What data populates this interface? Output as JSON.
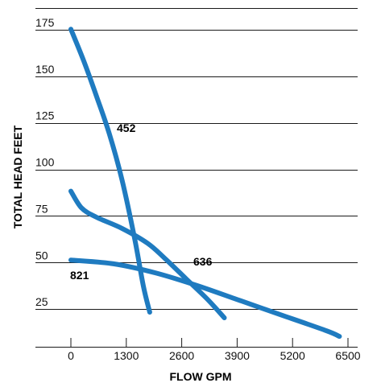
{
  "chart_data": {
    "type": "line",
    "title": "",
    "xlabel": "FLOW GPM",
    "ylabel": "TOTAL HEAD FEET",
    "xlim": [
      -800,
      6500
    ],
    "ylim": [
      0,
      180
    ],
    "x_ticks": [
      0,
      1300,
      2600,
      3900,
      5200,
      6500
    ],
    "x_tick_labels": [
      "0",
      "1300",
      "2600",
      "3900",
      "5200",
      "6500"
    ],
    "y_ticks": [
      25,
      50,
      75,
      100,
      125,
      150,
      175
    ],
    "y_tick_labels": [
      "25",
      "50",
      "75",
      "100",
      "125",
      "150",
      "175"
    ],
    "grid": "horizontal",
    "line_color": "#1f7bc0",
    "series": [
      {
        "name": "452",
        "points": [
          [
            0,
            171
          ],
          [
            300,
            154
          ],
          [
            600,
            135
          ],
          [
            900,
            115
          ],
          [
            1200,
            90
          ],
          [
            1500,
            58
          ],
          [
            1700,
            33
          ],
          [
            1850,
            19
          ]
        ]
      },
      {
        "name": "636",
        "points": [
          [
            0,
            84
          ],
          [
            250,
            75
          ],
          [
            600,
            70
          ],
          [
            1200,
            64
          ],
          [
            1800,
            56
          ],
          [
            2200,
            48
          ],
          [
            2700,
            37
          ],
          [
            3200,
            26
          ],
          [
            3600,
            16
          ]
        ]
      },
      {
        "name": "821",
        "points": [
          [
            0,
            47
          ],
          [
            1000,
            45
          ],
          [
            2000,
            40
          ],
          [
            3000,
            33
          ],
          [
            4000,
            25
          ],
          [
            5000,
            17
          ],
          [
            6000,
            9
          ],
          [
            6300,
            6
          ]
        ]
      }
    ]
  }
}
